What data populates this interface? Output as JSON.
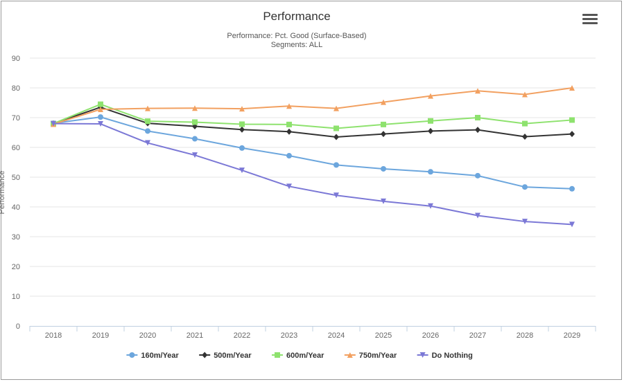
{
  "chart_data": {
    "type": "line",
    "title": "Performance",
    "subtitle_line1": "Performance: Pct. Good (Surface-Based)",
    "subtitle_line2": "Segments: ALL",
    "ylabel": "Performance",
    "xlabel": "",
    "ylim": [
      0,
      90
    ],
    "yticks": [
      "0",
      "10",
      "20",
      "30",
      "40",
      "50",
      "60",
      "70",
      "80",
      "90"
    ],
    "categories": [
      "2018",
      "2019",
      "2020",
      "2021",
      "2022",
      "2023",
      "2024",
      "2025",
      "2026",
      "2027",
      "2028",
      "2029"
    ],
    "grid": "horizontal",
    "legend_position": "bottom-center",
    "series": [
      {
        "name": "160m/Year",
        "color": "#6ca6dd",
        "marker": "circle",
        "values": [
          68.1,
          70.2,
          65.5,
          62.9,
          59.8,
          57.2,
          54.1,
          52.8,
          51.8,
          50.5,
          46.7,
          46.1
        ]
      },
      {
        "name": "500m/Year",
        "color": "#333333",
        "marker": "diamond",
        "values": [
          68.0,
          73.5,
          68.1,
          67.1,
          66.0,
          65.3,
          63.5,
          64.5,
          65.5,
          65.9,
          63.6,
          64.5
        ]
      },
      {
        "name": "600m/Year",
        "color": "#8ee26e",
        "marker": "square",
        "values": [
          68.0,
          74.5,
          68.8,
          68.5,
          67.8,
          67.7,
          66.4,
          67.7,
          68.9,
          70.0,
          68.0,
          69.2
        ]
      },
      {
        "name": "750m/Year",
        "color": "#f2a060",
        "marker": "triangle-up",
        "values": [
          67.8,
          72.8,
          73.1,
          73.2,
          73.0,
          73.9,
          73.1,
          75.2,
          77.3,
          79.0,
          77.8,
          80.0
        ]
      },
      {
        "name": "Do Nothing",
        "color": "#7b78d6",
        "marker": "triangle-down",
        "values": [
          68.0,
          67.9,
          61.5,
          57.4,
          52.3,
          46.9,
          43.9,
          41.9,
          40.3,
          37.1,
          35.1,
          34.1
        ]
      }
    ]
  },
  "icons": {
    "menu": "hamburger-menu-icon"
  }
}
